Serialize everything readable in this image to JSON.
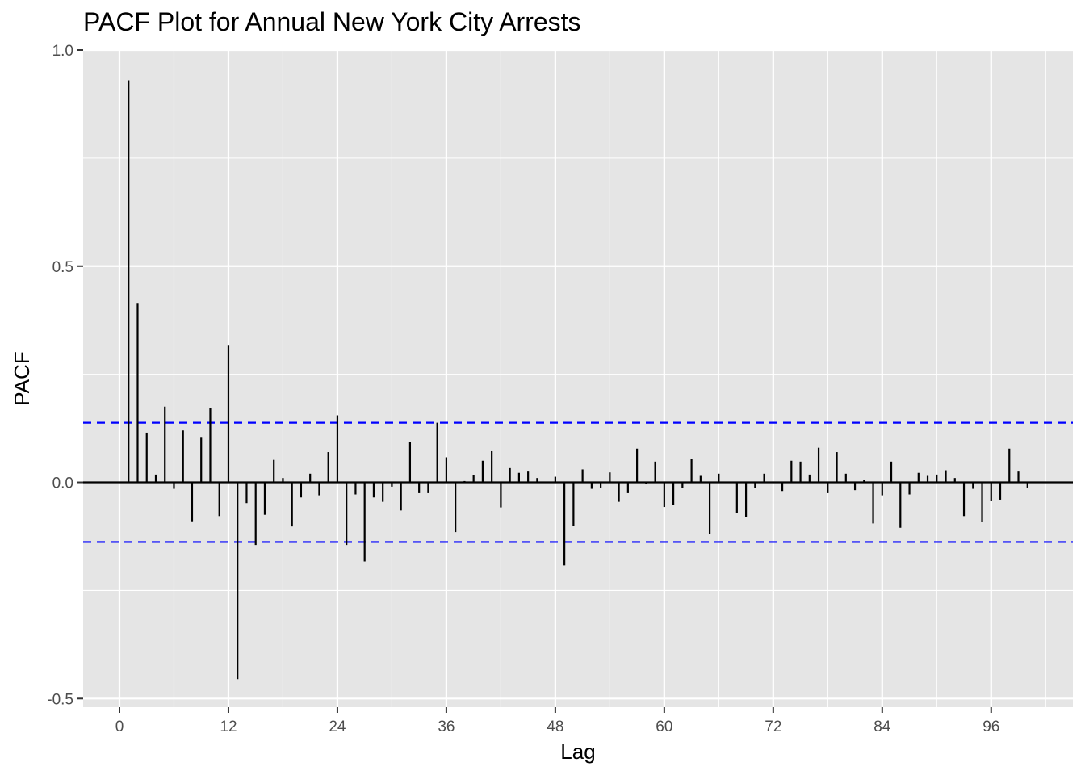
{
  "chart_data": {
    "type": "bar",
    "title": "PACF Plot for Annual New York City Arrests",
    "xlabel": "Lag",
    "ylabel": "PACF",
    "xlim": [
      -4,
      105
    ],
    "ylim": [
      -0.52,
      1.0
    ],
    "x_ticks": [
      0,
      12,
      24,
      36,
      48,
      60,
      72,
      84,
      96
    ],
    "y_ticks": [
      1.0,
      0.5,
      0.0,
      -0.5
    ],
    "y_tick_labels": [
      "1.0",
      "0.5",
      "0.0",
      "-0.5"
    ],
    "grid": true,
    "confidence_band": 0.138,
    "lags": [
      1,
      2,
      3,
      4,
      5,
      6,
      7,
      8,
      9,
      10,
      11,
      12,
      13,
      14,
      15,
      16,
      17,
      18,
      19,
      20,
      21,
      22,
      23,
      24,
      25,
      26,
      27,
      28,
      29,
      30,
      31,
      32,
      33,
      34,
      35,
      36,
      37,
      38,
      39,
      40,
      41,
      42,
      43,
      44,
      45,
      46,
      47,
      48,
      49,
      50,
      51,
      52,
      53,
      54,
      55,
      56,
      57,
      58,
      59,
      60,
      61,
      62,
      63,
      64,
      65,
      66,
      67,
      68,
      69,
      70,
      71,
      72,
      73,
      74,
      75,
      76,
      77,
      78,
      79,
      80,
      81,
      82,
      83,
      84,
      85,
      86,
      87,
      88,
      89,
      90,
      91,
      92,
      93,
      94,
      95,
      96,
      97,
      98,
      99,
      100
    ],
    "values": [
      0.93,
      0.415,
      0.115,
      0.018,
      0.175,
      -0.015,
      0.12,
      -0.09,
      0.105,
      0.172,
      -0.078,
      0.318,
      -0.455,
      -0.048,
      -0.145,
      -0.075,
      0.052,
      0.01,
      -0.102,
      -0.035,
      0.02,
      -0.03,
      0.07,
      0.155,
      -0.145,
      -0.028,
      -0.183,
      -0.035,
      -0.045,
      -0.01,
      -0.065,
      0.093,
      -0.025,
      -0.025,
      0.138,
      0.058,
      -0.115,
      0.003,
      0.017,
      0.05,
      0.072,
      -0.058,
      0.033,
      0.022,
      0.025,
      0.01,
      0.0,
      0.013,
      -0.192,
      -0.1,
      0.03,
      -0.015,
      -0.012,
      0.023,
      -0.045,
      -0.025,
      0.078,
      -0.003,
      0.048,
      -0.057,
      -0.052,
      -0.013,
      0.055,
      0.015,
      -0.12,
      0.02,
      0.0,
      -0.07,
      -0.08,
      -0.013,
      0.02,
      0.0,
      -0.02,
      0.05,
      0.048,
      0.018,
      0.08,
      -0.025,
      0.07,
      0.02,
      -0.018,
      0.005,
      -0.095,
      -0.03,
      0.048,
      -0.105,
      -0.028,
      0.022,
      0.015,
      0.018,
      0.028,
      0.01,
      -0.078,
      -0.015,
      -0.092,
      -0.042,
      -0.04,
      0.078,
      0.025,
      -0.012
    ]
  }
}
